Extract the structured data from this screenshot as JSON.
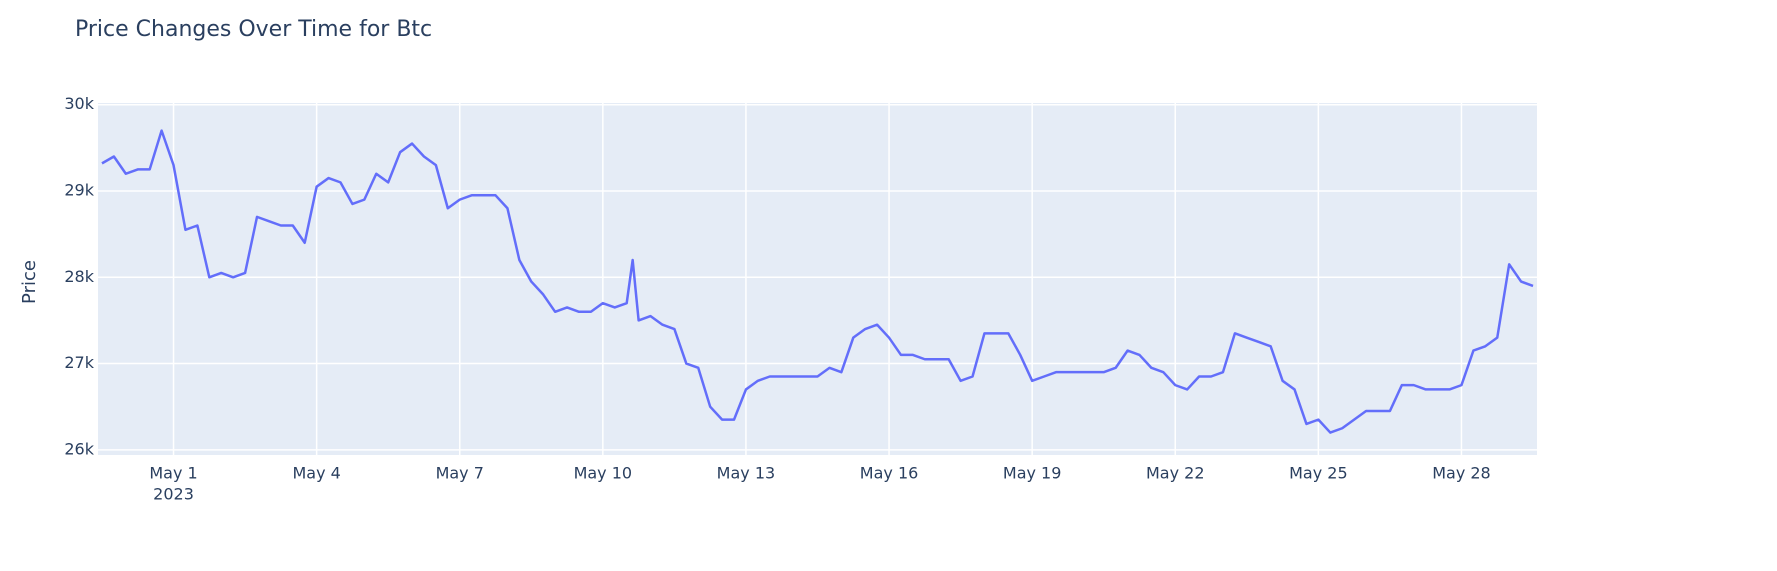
{
  "chart_data": {
    "type": "line",
    "title": "Price Changes Over Time for Btc",
    "y_label": "Price",
    "x": [
      "2023-04-29T12:00",
      "2023-04-29T18:00",
      "2023-04-30T00:00",
      "2023-04-30T06:00",
      "2023-04-30T12:00",
      "2023-04-30T18:00",
      "2023-05-01T00:00",
      "2023-05-01T06:00",
      "2023-05-01T12:00",
      "2023-05-01T18:00",
      "2023-05-02T00:00",
      "2023-05-02T06:00",
      "2023-05-02T12:00",
      "2023-05-02T18:00",
      "2023-05-03T00:00",
      "2023-05-03T06:00",
      "2023-05-03T12:00",
      "2023-05-03T18:00",
      "2023-05-04T00:00",
      "2023-05-04T06:00",
      "2023-05-04T12:00",
      "2023-05-04T18:00",
      "2023-05-05T00:00",
      "2023-05-05T06:00",
      "2023-05-05T12:00",
      "2023-05-05T18:00",
      "2023-05-06T00:00",
      "2023-05-06T06:00",
      "2023-05-06T12:00",
      "2023-05-06T18:00",
      "2023-05-07T00:00",
      "2023-05-07T06:00",
      "2023-05-07T12:00",
      "2023-05-07T18:00",
      "2023-05-08T00:00",
      "2023-05-08T06:00",
      "2023-05-08T12:00",
      "2023-05-08T18:00",
      "2023-05-09T00:00",
      "2023-05-09T06:00",
      "2023-05-09T12:00",
      "2023-05-09T18:00",
      "2023-05-10T00:00",
      "2023-05-10T06:00",
      "2023-05-10T12:00",
      "2023-05-10T15:00",
      "2023-05-10T18:00",
      "2023-05-11T00:00",
      "2023-05-11T06:00",
      "2023-05-11T12:00",
      "2023-05-11T18:00",
      "2023-05-12T00:00",
      "2023-05-12T06:00",
      "2023-05-12T12:00",
      "2023-05-12T18:00",
      "2023-05-13T00:00",
      "2023-05-13T06:00",
      "2023-05-13T12:00",
      "2023-05-13T18:00",
      "2023-05-14T00:00",
      "2023-05-14T06:00",
      "2023-05-14T12:00",
      "2023-05-14T18:00",
      "2023-05-15T00:00",
      "2023-05-15T06:00",
      "2023-05-15T12:00",
      "2023-05-15T18:00",
      "2023-05-16T00:00",
      "2023-05-16T06:00",
      "2023-05-16T12:00",
      "2023-05-16T18:00",
      "2023-05-17T00:00",
      "2023-05-17T06:00",
      "2023-05-17T12:00",
      "2023-05-17T18:00",
      "2023-05-18T00:00",
      "2023-05-18T06:00",
      "2023-05-18T12:00",
      "2023-05-18T18:00",
      "2023-05-19T00:00",
      "2023-05-19T06:00",
      "2023-05-19T12:00",
      "2023-05-19T18:00",
      "2023-05-20T00:00",
      "2023-05-20T06:00",
      "2023-05-20T12:00",
      "2023-05-20T18:00",
      "2023-05-21T00:00",
      "2023-05-21T06:00",
      "2023-05-21T12:00",
      "2023-05-21T18:00",
      "2023-05-22T00:00",
      "2023-05-22T06:00",
      "2023-05-22T12:00",
      "2023-05-22T18:00",
      "2023-05-23T00:00",
      "2023-05-23T06:00",
      "2023-05-23T12:00",
      "2023-05-23T18:00",
      "2023-05-24T00:00",
      "2023-05-24T06:00",
      "2023-05-24T12:00",
      "2023-05-24T18:00",
      "2023-05-25T00:00",
      "2023-05-25T06:00",
      "2023-05-25T12:00",
      "2023-05-25T18:00",
      "2023-05-26T00:00",
      "2023-05-26T06:00",
      "2023-05-26T12:00",
      "2023-05-26T18:00",
      "2023-05-27T00:00",
      "2023-05-27T06:00",
      "2023-05-27T12:00",
      "2023-05-27T18:00",
      "2023-05-28T00:00",
      "2023-05-28T06:00",
      "2023-05-28T12:00",
      "2023-05-28T18:00",
      "2023-05-29T00:00",
      "2023-05-29T06:00",
      "2023-05-29T12:00"
    ],
    "series": [
      {
        "name": "Price",
        "color": "#636efa",
        "values": [
          29320,
          29400,
          29200,
          29250,
          29250,
          29700,
          29300,
          28550,
          28600,
          28000,
          28050,
          28000,
          28050,
          28700,
          28650,
          28600,
          28600,
          28400,
          29050,
          29150,
          29100,
          28850,
          28900,
          29200,
          29100,
          29450,
          29550,
          29400,
          29300,
          28800,
          28900,
          28950,
          28950,
          28950,
          28800,
          28200,
          27950,
          27800,
          27600,
          27650,
          27600,
          27600,
          27700,
          27650,
          27700,
          28200,
          27500,
          27550,
          27450,
          27400,
          27000,
          26950,
          26500,
          26350,
          26350,
          26700,
          26800,
          26850,
          26850,
          26850,
          26850,
          26850,
          26950,
          26900,
          27300,
          27400,
          27450,
          27300,
          27100,
          27100,
          27050,
          27050,
          27050,
          26800,
          26850,
          27350,
          27350,
          27350,
          27100,
          26800,
          26850,
          26900,
          26900,
          26900,
          26900,
          26900,
          26950,
          27150,
          27100,
          26950,
          26900,
          26750,
          26700,
          26850,
          26850,
          26900,
          27350,
          27300,
          27250,
          27200,
          26800,
          26700,
          26300,
          26350,
          26200,
          26250,
          26350,
          26450,
          26450,
          26450,
          26750,
          26750,
          26700,
          26700,
          26700,
          26750,
          27150,
          27200,
          27300,
          28150,
          27950,
          27900
        ]
      }
    ],
    "xlim": [
      "2023-04-29T10:00",
      "2023-05-29T14:00"
    ],
    "xticks": [
      {
        "value": "2023-05-01T00:00",
        "label": "May 1",
        "sublabel": "2023"
      },
      {
        "value": "2023-05-04T00:00",
        "label": "May 4"
      },
      {
        "value": "2023-05-07T00:00",
        "label": "May 7"
      },
      {
        "value": "2023-05-10T00:00",
        "label": "May 10"
      },
      {
        "value": "2023-05-13T00:00",
        "label": "May 13"
      },
      {
        "value": "2023-05-16T00:00",
        "label": "May 16"
      },
      {
        "value": "2023-05-19T00:00",
        "label": "May 19"
      },
      {
        "value": "2023-05-22T00:00",
        "label": "May 22"
      },
      {
        "value": "2023-05-25T00:00",
        "label": "May 25"
      },
      {
        "value": "2023-05-28T00:00",
        "label": "May 28"
      }
    ],
    "ylim": [
      25940,
      30020
    ],
    "yticks": [
      {
        "value": 26000,
        "label": "26k"
      },
      {
        "value": 27000,
        "label": "27k"
      },
      {
        "value": 28000,
        "label": "28k"
      },
      {
        "value": 29000,
        "label": "29k"
      },
      {
        "value": 30000,
        "label": "30k"
      }
    ],
    "grid": true
  }
}
